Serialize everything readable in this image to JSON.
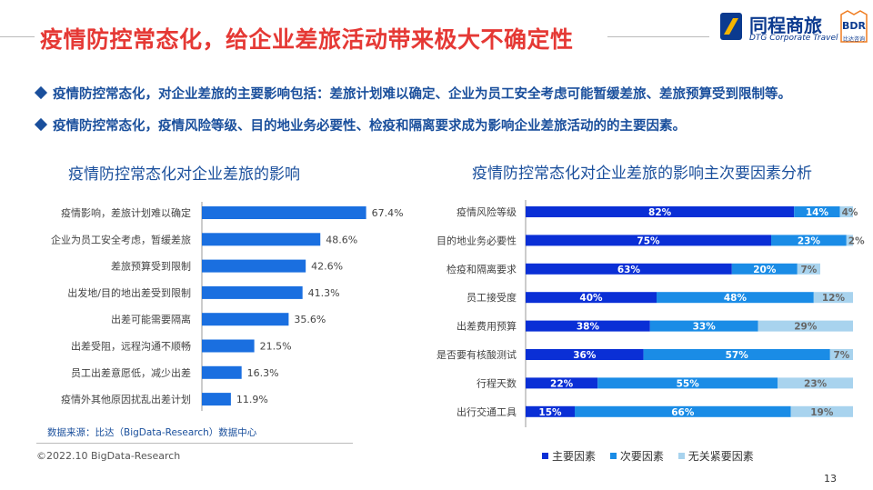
{
  "header": {
    "title": "疫情防控常态化，给企业差旅活动带来极大不确定性",
    "logo_cn": "同程商旅",
    "logo_en": "DTG Corporate Travel",
    "logo_bdr": "BDR",
    "logo_bdr_sub": "比达咨询"
  },
  "bullets": [
    "疫情防控常态化，对企业差旅的主要影响包括：差旅计划难以确定、企业为员工安全考虑可能暂缓差旅、差旅预算受到限制等。",
    "疫情防控常态化，疫情风险等级、目的地业务必要性、检疫和隔离要求成为影响企业差旅活动的的主要因素。"
  ],
  "colors": {
    "primary": "#0a2fd6",
    "secondary": "#1a8ce6",
    "tertiary": "#a8d3ee",
    "bar": "#1a6fe0",
    "accent": "#1a4f9c",
    "title_red": "#e53935"
  },
  "chart_data": [
    {
      "type": "bar",
      "orientation": "horizontal",
      "title": "疫情防控常态化对企业差旅的影响",
      "categories": [
        "疫情影响，差旅计划难以确定",
        "企业为员工安全考虑，暂缓差旅",
        "差旅预算受到限制",
        "出发地/目的地出差受到限制",
        "出差可能需要隔离",
        "出差受阻，远程沟通不顺畅",
        "员工出差意愿低，减少出差",
        "疫情外其他原因扰乱出差计划"
      ],
      "values": [
        67.4,
        48.6,
        42.6,
        41.3,
        35.6,
        21.5,
        16.3,
        11.9
      ],
      "value_labels": [
        "67.4%",
        "48.6%",
        "42.6%",
        "41.3%",
        "35.6%",
        "21.5%",
        "16.3%",
        "11.9%"
      ],
      "xlim": [
        0,
        100
      ],
      "grid": false
    },
    {
      "type": "bar",
      "orientation": "horizontal",
      "stacked": true,
      "title": "疫情防控常态化对企业差旅的影响主次要因素分析",
      "categories": [
        "疫情风险等级",
        "目的地业务必要性",
        "检疫和隔离要求",
        "员工接受度",
        "出差费用预算",
        "是否要有核酸测试",
        "行程天数",
        "出行交通工具"
      ],
      "series": [
        {
          "name": "主要因素",
          "values": [
            82,
            75,
            63,
            40,
            38,
            36,
            22,
            15
          ],
          "labels": [
            "82%",
            "75%",
            "63%",
            "40%",
            "38%",
            "36%",
            "22%",
            "15%"
          ]
        },
        {
          "name": "次要因素",
          "values": [
            14,
            23,
            20,
            48,
            33,
            57,
            55,
            66
          ],
          "labels": [
            "14%",
            "23%",
            "20%",
            "48%",
            "33%",
            "57%",
            "55%",
            "66%"
          ]
        },
        {
          "name": "无关紧要因素",
          "values": [
            4,
            2,
            7,
            12,
            29,
            7,
            23,
            19
          ],
          "labels": [
            "4%",
            "2%",
            "7%",
            "12%",
            "29%",
            "7%",
            "23%",
            "19%"
          ]
        }
      ],
      "xlim": [
        0,
        100
      ],
      "legend": "bottom",
      "grid": false
    }
  ],
  "footer": {
    "source": "数据来源：比达（BigData-Research）数据中心",
    "copyright": "©2022.10 BigData-Research",
    "page": "13"
  }
}
